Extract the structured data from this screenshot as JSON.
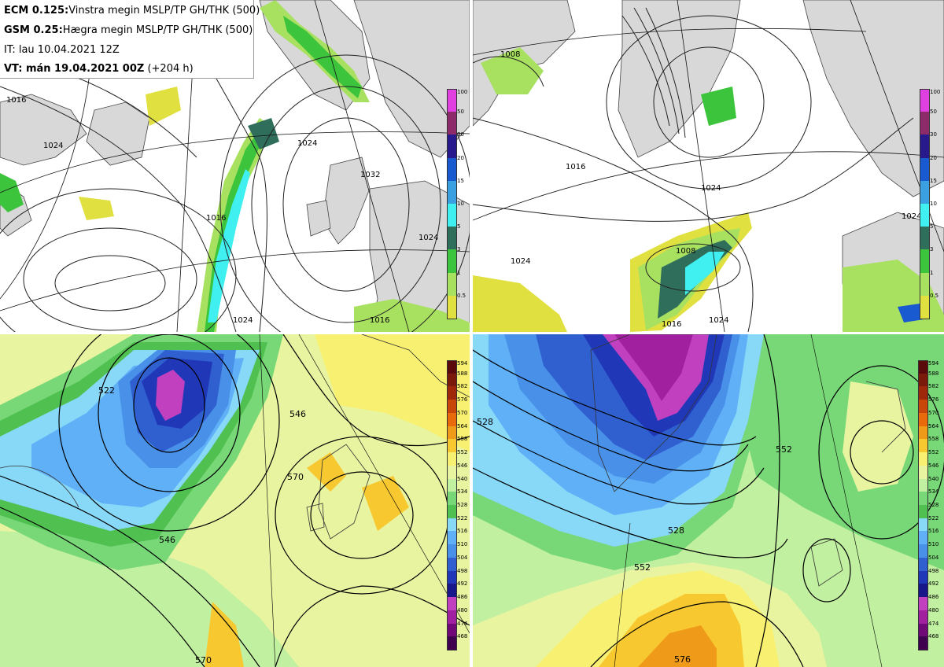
{
  "header": {
    "line1_model": "ECM 0.125:",
    "line1_desc": "Vinstra megin MSLP/TP GH/THK (500)",
    "line2_model": "GSM 0.25:",
    "line2_desc": "Hægra megin MSLP/TP GH/THK (500)",
    "init_time": "IT: lau 10.04.2021 12Z",
    "valid_label": "VT: mán 19.04.2021 00Z",
    "valid_offset": "(+204 h)"
  },
  "precip_scale": {
    "labels": [
      "100",
      "50",
      "30",
      "20",
      "15",
      "10",
      "5",
      "3",
      "1",
      "0.5"
    ],
    "colors": [
      "#e040e0",
      "#8c2a6a",
      "#281a8c",
      "#1a5ad0",
      "#3aa0e0",
      "#40f0f0",
      "#2e6e5a",
      "#3cc43c",
      "#a8e060",
      "#e0e040"
    ]
  },
  "thickness_scale": {
    "labels": [
      "594",
      "588",
      "582",
      "576",
      "570",
      "564",
      "558",
      "552",
      "546",
      "540",
      "534",
      "528",
      "522",
      "516",
      "510",
      "504",
      "498",
      "492",
      "486",
      "480",
      "474",
      "468"
    ],
    "colors": [
      "#5a0a0a",
      "#7a1a0a",
      "#a0280a",
      "#c8460a",
      "#e86a0a",
      "#f09a1a",
      "#f8c830",
      "#f8f070",
      "#e8f4a0",
      "#c0f0a0",
      "#78d878",
      "#50c050",
      "#88d8f8",
      "#60b0f8",
      "#4890e8",
      "#3060d0",
      "#2038b8",
      "#18188a",
      "#c040c0",
      "#a020a0",
      "#700878",
      "#400050"
    ]
  },
  "mslp_labels_ecm": [
    "1016",
    "1024",
    "1016",
    "1024",
    "1032",
    "1024",
    "1024",
    "1016"
  ],
  "mslp_labels_gsm": [
    "1008",
    "1016",
    "1024",
    "1024",
    "1008",
    "1016",
    "1024",
    "1024"
  ],
  "gh_labels_ecm": [
    "522",
    "546",
    "570",
    "546",
    "570"
  ],
  "gh_labels_gsm": [
    "528",
    "528",
    "552",
    "552",
    "576"
  ]
}
